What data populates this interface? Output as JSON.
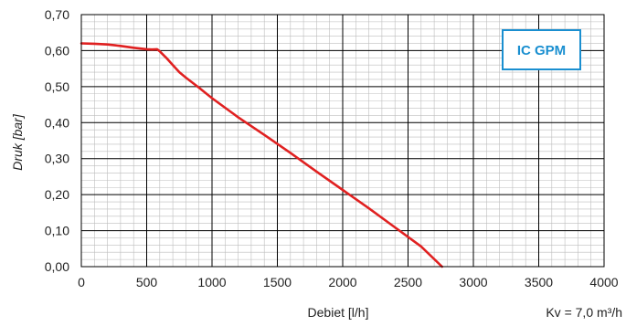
{
  "chart_data": {
    "type": "line",
    "title": "",
    "xlabel": "Debiet [l/h]",
    "ylabel": "Druk [bar]",
    "xlim": [
      0,
      4000
    ],
    "ylim": [
      0,
      0.7
    ],
    "x_ticks": [
      "0",
      "500",
      "1000",
      "1500",
      "2000",
      "2500",
      "3000",
      "3500",
      "4000"
    ],
    "y_ticks": [
      "0,00",
      "0,10",
      "0,20",
      "0,30",
      "0,40",
      "0,50",
      "0,60",
      "0,70"
    ],
    "grid": true,
    "legend": "none",
    "badge": "IC GPM",
    "note": "Kv = 7,0 m³/h",
    "series": [
      {
        "color": "#e02020",
        "x": [
          0,
          100,
          200,
          300,
          400,
          500,
          540,
          580,
          600,
          650,
          700,
          750,
          800,
          900,
          1000,
          1200,
          1400,
          1600,
          1800,
          2000,
          2200,
          2400,
          2600,
          2760
        ],
        "y": [
          0.62,
          0.619,
          0.617,
          0.613,
          0.608,
          0.604,
          0.603,
          0.604,
          0.598,
          0.58,
          0.56,
          0.54,
          0.525,
          0.497,
          0.468,
          0.415,
          0.366,
          0.316,
          0.264,
          0.213,
          0.162,
          0.109,
          0.056,
          0.0
        ]
      }
    ]
  },
  "colors": {
    "badge_border": "#1a8fd0",
    "badge_text": "#1a8fd0",
    "grid_major": "#000000",
    "grid_minor": "#bdbdbd"
  }
}
